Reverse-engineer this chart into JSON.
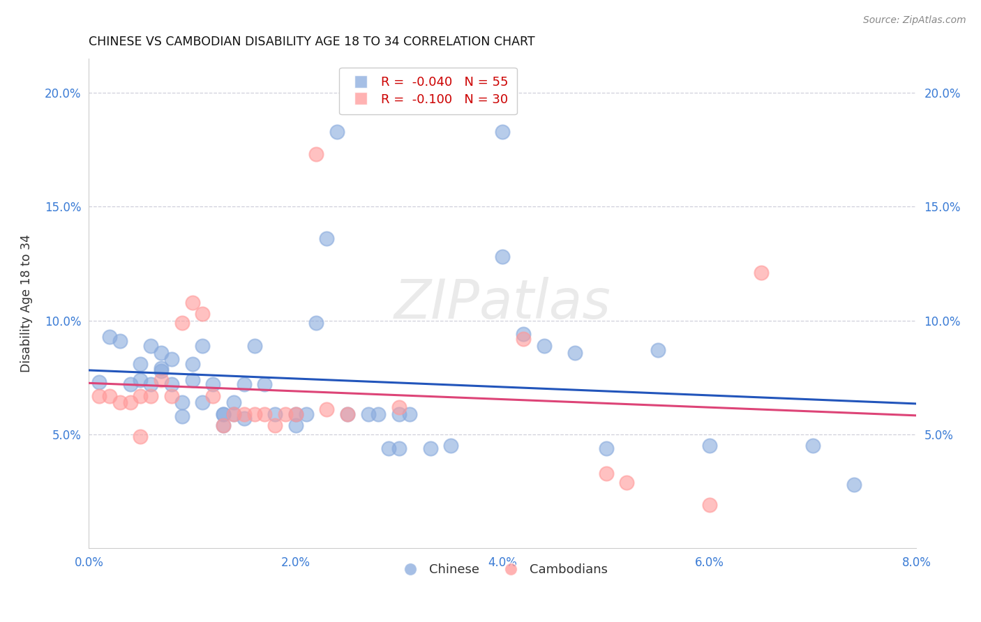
{
  "title": "CHINESE VS CAMBODIAN DISABILITY AGE 18 TO 34 CORRELATION CHART",
  "source": "Source: ZipAtlas.com",
  "ylabel": "Disability Age 18 to 34",
  "xlim": [
    0.0,
    0.08
  ],
  "ylim": [
    0.0,
    0.215
  ],
  "yticks": [
    0.05,
    0.1,
    0.15,
    0.2
  ],
  "ytick_labels": [
    "5.0%",
    "10.0%",
    "15.0%",
    "20.0%"
  ],
  "xticks": [
    0.0,
    0.02,
    0.04,
    0.06,
    0.08
  ],
  "xtick_labels": [
    "0.0%",
    "2.0%",
    "4.0%",
    "6.0%",
    "8.0%"
  ],
  "legend_r_chinese": "R =  -0.040",
  "legend_n_chinese": "N = 55",
  "legend_r_cambodian": "R =  -0.100",
  "legend_n_cambodian": "N = 30",
  "chinese_color": "#88aadd",
  "cambodian_color": "#ff9999",
  "trendline_chinese_color": "#2255bb",
  "trendline_cambodian_color": "#dd4477",
  "watermark": "ZIPatlas",
  "chinese_points": [
    [
      0.001,
      0.073
    ],
    [
      0.002,
      0.093
    ],
    [
      0.003,
      0.091
    ],
    [
      0.004,
      0.072
    ],
    [
      0.005,
      0.081
    ],
    [
      0.005,
      0.074
    ],
    [
      0.006,
      0.072
    ],
    [
      0.006,
      0.089
    ],
    [
      0.007,
      0.078
    ],
    [
      0.007,
      0.086
    ],
    [
      0.007,
      0.079
    ],
    [
      0.008,
      0.083
    ],
    [
      0.008,
      0.072
    ],
    [
      0.009,
      0.064
    ],
    [
      0.009,
      0.058
    ],
    [
      0.01,
      0.074
    ],
    [
      0.01,
      0.081
    ],
    [
      0.011,
      0.089
    ],
    [
      0.011,
      0.064
    ],
    [
      0.012,
      0.072
    ],
    [
      0.013,
      0.059
    ],
    [
      0.013,
      0.054
    ],
    [
      0.013,
      0.059
    ],
    [
      0.014,
      0.059
    ],
    [
      0.014,
      0.064
    ],
    [
      0.015,
      0.057
    ],
    [
      0.015,
      0.072
    ],
    [
      0.016,
      0.089
    ],
    [
      0.017,
      0.072
    ],
    [
      0.018,
      0.059
    ],
    [
      0.02,
      0.059
    ],
    [
      0.02,
      0.054
    ],
    [
      0.021,
      0.059
    ],
    [
      0.022,
      0.099
    ],
    [
      0.023,
      0.136
    ],
    [
      0.024,
      0.183
    ],
    [
      0.025,
      0.059
    ],
    [
      0.027,
      0.059
    ],
    [
      0.028,
      0.059
    ],
    [
      0.029,
      0.044
    ],
    [
      0.03,
      0.044
    ],
    [
      0.03,
      0.059
    ],
    [
      0.031,
      0.059
    ],
    [
      0.033,
      0.044
    ],
    [
      0.035,
      0.045
    ],
    [
      0.04,
      0.183
    ],
    [
      0.04,
      0.128
    ],
    [
      0.042,
      0.094
    ],
    [
      0.044,
      0.089
    ],
    [
      0.047,
      0.086
    ],
    [
      0.05,
      0.044
    ],
    [
      0.055,
      0.087
    ],
    [
      0.06,
      0.045
    ],
    [
      0.07,
      0.045
    ],
    [
      0.074,
      0.028
    ]
  ],
  "cambodian_points": [
    [
      0.001,
      0.067
    ],
    [
      0.002,
      0.067
    ],
    [
      0.003,
      0.064
    ],
    [
      0.004,
      0.064
    ],
    [
      0.005,
      0.067
    ],
    [
      0.005,
      0.049
    ],
    [
      0.006,
      0.067
    ],
    [
      0.007,
      0.074
    ],
    [
      0.008,
      0.067
    ],
    [
      0.009,
      0.099
    ],
    [
      0.01,
      0.108
    ],
    [
      0.011,
      0.103
    ],
    [
      0.012,
      0.067
    ],
    [
      0.013,
      0.054
    ],
    [
      0.014,
      0.059
    ],
    [
      0.015,
      0.059
    ],
    [
      0.016,
      0.059
    ],
    [
      0.017,
      0.059
    ],
    [
      0.018,
      0.054
    ],
    [
      0.019,
      0.059
    ],
    [
      0.02,
      0.059
    ],
    [
      0.022,
      0.173
    ],
    [
      0.023,
      0.061
    ],
    [
      0.025,
      0.059
    ],
    [
      0.03,
      0.062
    ],
    [
      0.042,
      0.092
    ],
    [
      0.05,
      0.033
    ],
    [
      0.052,
      0.029
    ],
    [
      0.06,
      0.019
    ],
    [
      0.065,
      0.121
    ]
  ]
}
